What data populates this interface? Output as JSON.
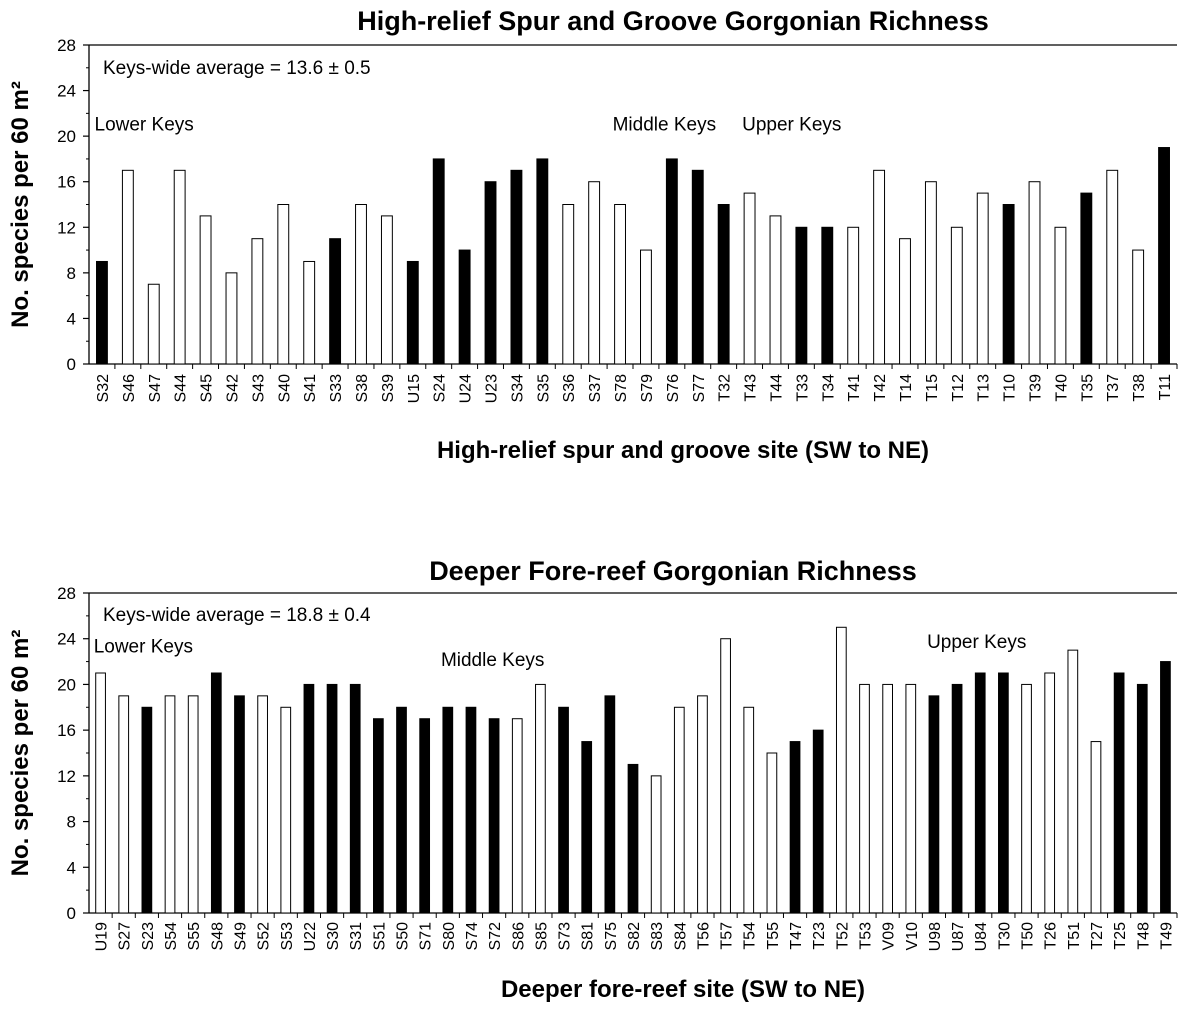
{
  "chart_data": [
    {
      "type": "bar",
      "title": "High-relief Spur and Groove Gorgonian Richness",
      "xlabel": "High-relief spur and groove site (SW to NE)",
      "ylabel": "No. species per 60 m²",
      "ylim": [
        0,
        28
      ],
      "yticks": [
        0,
        4,
        8,
        12,
        16,
        20,
        24,
        28
      ],
      "grid": false,
      "average_label": "Keys-wide average = 13.6 ± 0.5",
      "annotations": [
        {
          "text": "Lower Keys",
          "category": "S32",
          "y": 20.5
        },
        {
          "text": "Middle Keys",
          "category": "S78",
          "y": 20.5
        },
        {
          "text": "Upper Keys",
          "category": "T43",
          "y": 20.5
        }
      ],
      "categories": [
        "S32",
        "S46",
        "S47",
        "S44",
        "S45",
        "S42",
        "S43",
        "S40",
        "S41",
        "S33",
        "S38",
        "S39",
        "U15",
        "S24",
        "U24",
        "U23",
        "S34",
        "S35",
        "S36",
        "S37",
        "S78",
        "S79",
        "S76",
        "S77",
        "T32",
        "T43",
        "T44",
        "T33",
        "T34",
        "T41",
        "T42",
        "T14",
        "T15",
        "T12",
        "T13",
        "T10",
        "T39",
        "T40",
        "T35",
        "T37",
        "T38",
        "T11"
      ],
      "values": [
        9,
        17,
        7,
        17,
        13,
        8,
        11,
        14,
        9,
        11,
        14,
        13,
        9,
        18,
        10,
        16,
        17,
        18,
        14,
        16,
        14,
        10,
        18,
        17,
        14,
        15,
        13,
        12,
        12,
        12,
        17,
        11,
        16,
        12,
        15,
        14,
        16,
        12,
        15,
        17,
        10,
        19
      ],
      "filled": [
        1,
        0,
        0,
        0,
        0,
        0,
        0,
        0,
        0,
        1,
        0,
        0,
        1,
        1,
        1,
        1,
        1,
        1,
        0,
        0,
        0,
        0,
        1,
        1,
        1,
        0,
        0,
        1,
        1,
        0,
        0,
        0,
        0,
        0,
        0,
        1,
        0,
        0,
        1,
        0,
        0,
        1
      ]
    },
    {
      "type": "bar",
      "title": "Deeper Fore-reef Gorgonian Richness",
      "xlabel": "Deeper fore-reef site (SW to NE)",
      "ylabel": "No. species per 60 m²",
      "ylim": [
        0,
        28
      ],
      "yticks": [
        0,
        4,
        8,
        12,
        16,
        20,
        24,
        28
      ],
      "grid": false,
      "average_label": "Keys-wide average = 18.8 ± 0.4",
      "annotations": [
        {
          "text": "Lower Keys",
          "category": "U19",
          "y": 22.8
        },
        {
          "text": "Middle Keys",
          "category": "S80",
          "y": 21.6
        },
        {
          "text": "Upper Keys",
          "category": "U98",
          "y": 23.2
        }
      ],
      "categories": [
        "U19",
        "S27",
        "S23",
        "S54",
        "S55",
        "S48",
        "S49",
        "S52",
        "S53",
        "U22",
        "S30",
        "S31",
        "S51",
        "S50",
        "S71",
        "S80",
        "S74",
        "S72",
        "S86",
        "S85",
        "S73",
        "S81",
        "S75",
        "S82",
        "S83",
        "S84",
        "T56",
        "T57",
        "T54",
        "T55",
        "T47",
        "T23",
        "T52",
        "T53",
        "V09",
        "V10",
        "U98",
        "U87",
        "U84",
        "T30",
        "T50",
        "T26",
        "T51",
        "T27",
        "T25",
        "T48",
        "T49"
      ],
      "values": [
        21,
        19,
        18,
        19,
        19,
        21,
        19,
        19,
        18,
        20,
        20,
        20,
        17,
        18,
        17,
        18,
        18,
        17,
        17,
        20,
        18,
        15,
        19,
        13,
        12,
        18,
        19,
        24,
        18,
        14,
        15,
        16,
        25,
        20,
        20,
        20,
        19,
        20,
        21,
        21,
        20,
        21,
        23,
        15,
        21,
        20,
        22
      ],
      "filled": [
        0,
        0,
        1,
        0,
        0,
        1,
        1,
        0,
        0,
        1,
        1,
        1,
        1,
        1,
        1,
        1,
        1,
        1,
        0,
        0,
        1,
        1,
        1,
        1,
        0,
        0,
        0,
        0,
        0,
        0,
        1,
        1,
        0,
        0,
        0,
        0,
        1,
        1,
        1,
        1,
        0,
        0,
        0,
        0,
        1,
        1,
        1
      ]
    }
  ]
}
